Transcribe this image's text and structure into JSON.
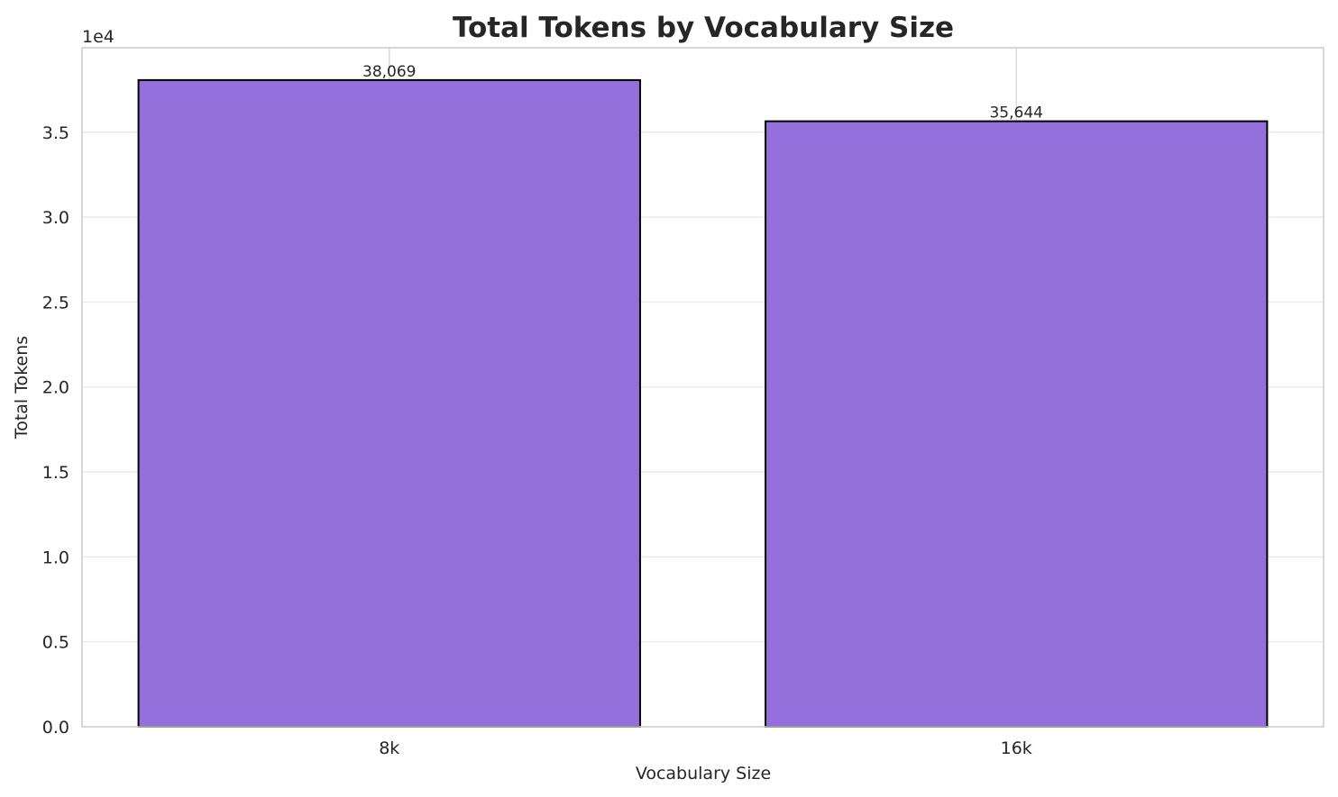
{
  "chart_data": {
    "type": "bar",
    "title": "Total Tokens by Vocabulary Size",
    "xlabel": "Vocabulary Size",
    "ylabel": "Total Tokens",
    "y_offset_label": "1e4",
    "categories": [
      "8k",
      "16k"
    ],
    "values": [
      38069,
      35644
    ],
    "data_labels": [
      "38,069",
      "35,644"
    ],
    "yticks": [
      0,
      5000,
      10000,
      15000,
      20000,
      25000,
      30000,
      35000
    ],
    "ytick_labels": [
      "0.0",
      "0.5",
      "1.0",
      "1.5",
      "2.0",
      "2.5",
      "3.0",
      "3.5"
    ],
    "ylim": [
      0,
      39972
    ],
    "grid": true,
    "bar_color": "#9370DB",
    "edge_color": "#000000"
  }
}
